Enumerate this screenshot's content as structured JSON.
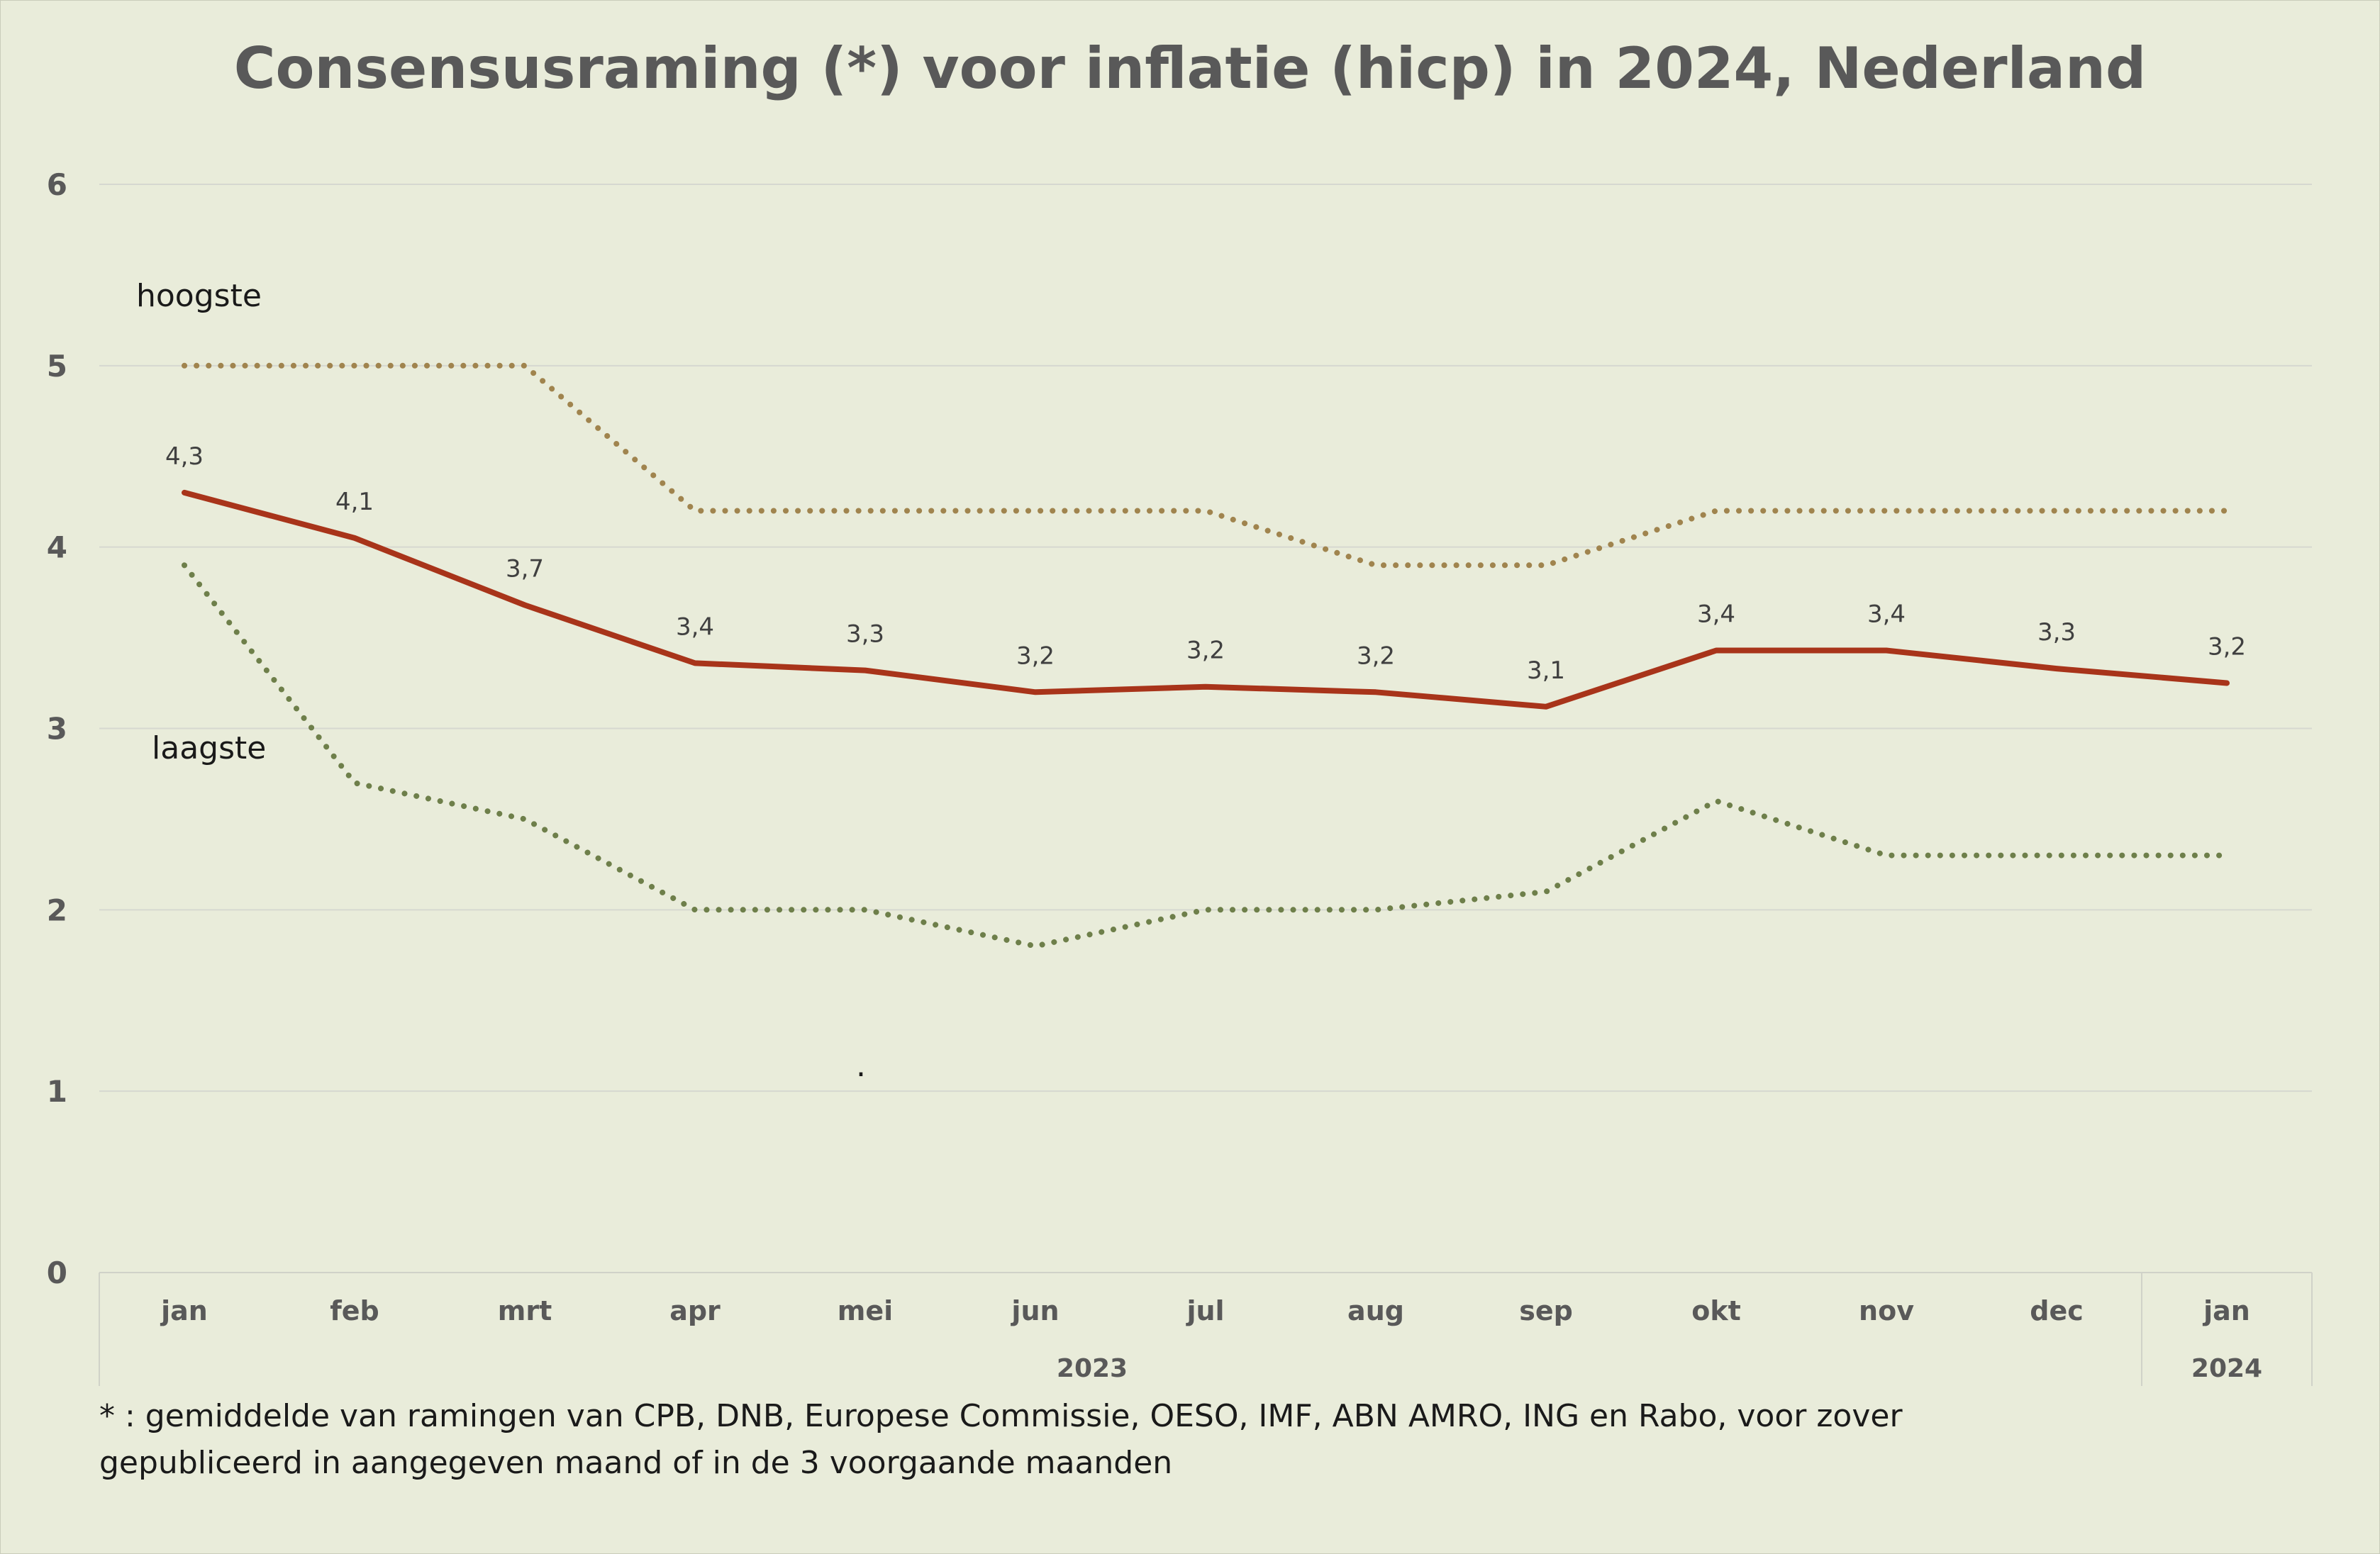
{
  "chart_data": {
    "type": "line",
    "title": "Consensusraming (*) voor inflatie (hicp) in 2024, Nederland",
    "categories": [
      "jan",
      "feb",
      "mrt",
      "apr",
      "mei",
      "jun",
      "jul",
      "aug",
      "sep",
      "okt",
      "nov",
      "dec",
      "jan"
    ],
    "year_groups": [
      {
        "label": "2023",
        "span": 12
      },
      {
        "label": "2024",
        "span": 1
      }
    ],
    "ylim": [
      0,
      6
    ],
    "yticks": [
      "0",
      "1",
      "2",
      "3",
      "4",
      "5",
      "6"
    ],
    "grid": true,
    "series": [
      {
        "key": "hoogste",
        "name": "hoogste",
        "style": "dotted",
        "color": "#a0844e",
        "values": [
          5.0,
          5.0,
          5.0,
          4.2,
          4.2,
          4.2,
          4.2,
          3.9,
          3.9,
          4.2,
          4.2,
          4.2,
          4.2
        ]
      },
      {
        "key": "laagste",
        "name": "laagste",
        "style": "dotted",
        "color": "#6e7f4a",
        "values": [
          3.9,
          2.7,
          2.5,
          2.0,
          2.0,
          1.8,
          2.0,
          2.0,
          2.1,
          2.6,
          2.3,
          2.3,
          2.3
        ]
      },
      {
        "key": "gemiddelde",
        "style": "solid",
        "color": "#a8341a",
        "values": [
          4.3,
          4.05,
          3.68,
          3.36,
          3.32,
          3.2,
          3.23,
          3.2,
          3.12,
          3.43,
          3.43,
          3.33,
          3.25
        ],
        "data_labels": [
          "4,3",
          "4,1",
          "3,7",
          "3,4",
          "3,3",
          "3,2",
          "3,2",
          "3,2",
          "3,1",
          "3,4",
          "3,4",
          "3,3",
          "3,2"
        ]
      }
    ],
    "footnote": [
      "* : gemiddelde van ramingen van CPB, DNB, Europese Commissie, OESO, IMF, ABN AMRO, ING en Rabo, voor zover",
      "gepubliceerd in aangegeven maand of in de 3 voorgaande maanden"
    ],
    "stray_mark": "."
  }
}
